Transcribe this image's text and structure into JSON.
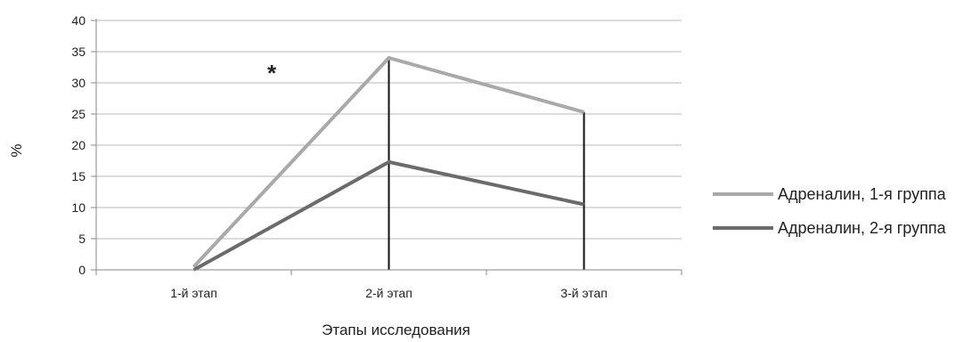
{
  "chart_data": {
    "type": "line",
    "categories": [
      "1-й этап",
      "2-й этап",
      "3-й этап"
    ],
    "series": [
      {
        "name": "Адреналин, 1-я группа",
        "values": [
          0.5,
          34,
          25.3
        ],
        "color": "#a9a9a9"
      },
      {
        "name": "Адреналин, 2-я группа",
        "values": [
          0,
          17.3,
          10.5
        ],
        "color": "#6b6b6b"
      }
    ],
    "ylim": [
      0,
      40
    ],
    "yticks": [
      "0",
      "5",
      "10",
      "15",
      "20",
      "25",
      "30",
      "35",
      "40"
    ],
    "ylabel": "%",
    "xlabel": "Этапы исследования",
    "annotation": "*",
    "grid": true,
    "legend_position": "right"
  }
}
